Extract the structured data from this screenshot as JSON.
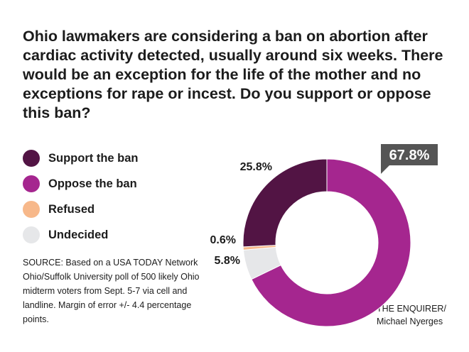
{
  "title": "Ohio lawmakers are considering a ban on abortion after cardiac activity detected, usually around six weeks. There would be an exception for the life of the mother and no exceptions for rape or incest. Do you support or oppose this ban?",
  "source": "SOURCE: Based on a USA TODAY Network Ohio/Suffolk University poll of 500 likely Ohio midterm voters from Sept. 5-7 via cell and landline. Margin of error +/- 4.4 percentage points.",
  "credit": [
    "THE ENQUIRER/",
    "Michael Nyerges"
  ],
  "chart_data": {
    "type": "pie",
    "variant": "donut",
    "start_angle_deg": 0,
    "direction": "clockwise",
    "title": "Ohio lawmakers are considering a ban on abortion after cardiac activity detected, usually around six weeks. There would be an exception for the life of the mother and no exceptions for rape or incest. Do you support or oppose this ban?",
    "unit": "%",
    "highlight": "Oppose the ban",
    "slices": [
      {
        "label": "Oppose the ban",
        "value": 67.8,
        "display": "67.8%",
        "color": "#a5268f"
      },
      {
        "label": "Undecided",
        "value": 5.8,
        "display": "5.8%",
        "color": "#e6e7e9"
      },
      {
        "label": "Refused",
        "value": 0.6,
        "display": "0.6%",
        "color": "#f7b88a"
      },
      {
        "label": "Support the ban",
        "value": 25.8,
        "display": "25.8%",
        "color": "#521444"
      }
    ],
    "legend": [
      {
        "label": "Support the ban",
        "color": "#521444"
      },
      {
        "label": "Oppose the ban",
        "color": "#a5268f"
      },
      {
        "label": "Refused",
        "color": "#f7b88a"
      },
      {
        "label": "Undecided",
        "color": "#e6e7e9"
      }
    ],
    "callout_color": "#555555"
  }
}
